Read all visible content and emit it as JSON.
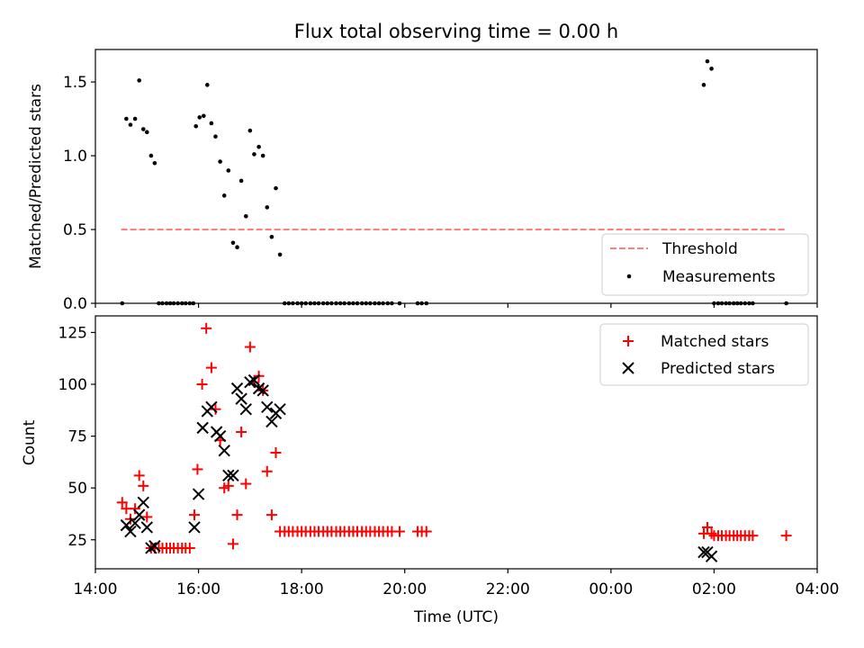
{
  "title": "Flux total observing time = 0.00 h",
  "colors": {
    "threshold": "#ff7f7f",
    "measurement": "#000000",
    "matched": "#ff0000",
    "predicted": "#000000",
    "axes": "#000000"
  },
  "chart_data": [
    {
      "type": "scatter",
      "ylabel": "Matched/Predicted stars",
      "xlim_hours": [
        14.0,
        28.0
      ],
      "ylim": [
        0,
        1.72
      ],
      "yticks": [
        0.0,
        0.5,
        1.0,
        1.5
      ],
      "ytick_labels": [
        "0.0",
        "0.5",
        "1.0",
        "1.5"
      ],
      "legend": {
        "location": "lower-right",
        "entries": [
          "Threshold",
          "Measurements"
        ]
      },
      "threshold": {
        "name": "Threshold",
        "y": 0.5,
        "x_range": [
          14.5,
          27.4
        ]
      },
      "series": [
        {
          "name": "Measurements",
          "marker": "dot",
          "points": [
            [
              14.52,
              0
            ],
            [
              14.6,
              1.25
            ],
            [
              14.68,
              1.21
            ],
            [
              14.77,
              1.25
            ],
            [
              14.85,
              1.51
            ],
            [
              14.93,
              1.18
            ],
            [
              15.0,
              1.16
            ],
            [
              15.08,
              1.0
            ],
            [
              15.15,
              0.95
            ],
            [
              15.23,
              0
            ],
            [
              15.3,
              0
            ],
            [
              15.38,
              0
            ],
            [
              15.45,
              0
            ],
            [
              15.52,
              0
            ],
            [
              15.6,
              0
            ],
            [
              15.68,
              0
            ],
            [
              15.75,
              0
            ],
            [
              15.83,
              0
            ],
            [
              15.9,
              0
            ],
            [
              15.95,
              1.2
            ],
            [
              16.02,
              1.26
            ],
            [
              16.1,
              1.27
            ],
            [
              16.17,
              1.48
            ],
            [
              16.25,
              1.22
            ],
            [
              16.33,
              1.13
            ],
            [
              16.42,
              0.96
            ],
            [
              16.5,
              0.73
            ],
            [
              16.58,
              0.9
            ],
            [
              16.67,
              0.41
            ],
            [
              16.75,
              0.38
            ],
            [
              16.83,
              0.83
            ],
            [
              16.92,
              0.59
            ],
            [
              17.0,
              1.17
            ],
            [
              17.08,
              1.01
            ],
            [
              17.17,
              1.06
            ],
            [
              17.25,
              1.0
            ],
            [
              17.33,
              0.65
            ],
            [
              17.42,
              0.45
            ],
            [
              17.5,
              0.78
            ],
            [
              17.58,
              0.33
            ],
            [
              17.67,
              0
            ],
            [
              17.75,
              0
            ],
            [
              17.83,
              0
            ],
            [
              17.92,
              0
            ],
            [
              18.0,
              0
            ],
            [
              18.08,
              0
            ],
            [
              18.17,
              0
            ],
            [
              18.25,
              0
            ],
            [
              18.33,
              0
            ],
            [
              18.42,
              0
            ],
            [
              18.5,
              0
            ],
            [
              18.58,
              0
            ],
            [
              18.67,
              0
            ],
            [
              18.75,
              0
            ],
            [
              18.83,
              0
            ],
            [
              18.92,
              0
            ],
            [
              19.0,
              0
            ],
            [
              19.08,
              0
            ],
            [
              19.17,
              0
            ],
            [
              19.25,
              0
            ],
            [
              19.33,
              0
            ],
            [
              19.42,
              0
            ],
            [
              19.5,
              0
            ],
            [
              19.58,
              0
            ],
            [
              19.67,
              0
            ],
            [
              19.75,
              0
            ],
            [
              19.9,
              0
            ],
            [
              20.25,
              0
            ],
            [
              20.33,
              0
            ],
            [
              20.42,
              0
            ],
            [
              25.8,
              1.48
            ],
            [
              25.87,
              1.64
            ],
            [
              25.95,
              1.59
            ],
            [
              26.0,
              0
            ],
            [
              26.08,
              0
            ],
            [
              26.15,
              0
            ],
            [
              26.23,
              0
            ],
            [
              26.3,
              0
            ],
            [
              26.38,
              0
            ],
            [
              26.45,
              0
            ],
            [
              26.52,
              0
            ],
            [
              26.6,
              0
            ],
            [
              26.68,
              0
            ],
            [
              26.75,
              0
            ],
            [
              27.4,
              0
            ]
          ]
        }
      ]
    },
    {
      "type": "scatter",
      "xlabel": "Time (UTC)",
      "ylabel": "Count",
      "xlim_hours": [
        14.0,
        28.0
      ],
      "ylim": [
        11,
        133
      ],
      "xticks_hours": [
        14,
        16,
        18,
        20,
        22,
        24,
        26,
        28
      ],
      "xtick_labels": [
        "14:00",
        "16:00",
        "18:00",
        "20:00",
        "22:00",
        "00:00",
        "02:00",
        "04:00"
      ],
      "yticks": [
        25,
        50,
        75,
        100,
        125
      ],
      "ytick_labels": [
        "25",
        "50",
        "75",
        "100",
        "125"
      ],
      "legend": {
        "location": "top-right",
        "entries": [
          "Matched stars",
          "Predicted stars"
        ]
      },
      "series": [
        {
          "name": "Matched stars",
          "marker": "plus",
          "points": [
            [
              14.52,
              43
            ],
            [
              14.6,
              40
            ],
            [
              14.68,
              35
            ],
            [
              14.77,
              40
            ],
            [
              14.85,
              56
            ],
            [
              14.93,
              51
            ],
            [
              15.0,
              36
            ],
            [
              15.08,
              21
            ],
            [
              15.15,
              21
            ],
            [
              15.23,
              21
            ],
            [
              15.3,
              21
            ],
            [
              15.38,
              21
            ],
            [
              15.45,
              21
            ],
            [
              15.52,
              21
            ],
            [
              15.6,
              21
            ],
            [
              15.68,
              21
            ],
            [
              15.75,
              21
            ],
            [
              15.83,
              21
            ],
            [
              15.92,
              37
            ],
            [
              15.98,
              59
            ],
            [
              16.07,
              100
            ],
            [
              16.15,
              127
            ],
            [
              16.25,
              108
            ],
            [
              16.33,
              88
            ],
            [
              16.42,
              73
            ],
            [
              16.5,
              50
            ],
            [
              16.58,
              51
            ],
            [
              16.67,
              23
            ],
            [
              16.75,
              37
            ],
            [
              16.83,
              77
            ],
            [
              16.92,
              52
            ],
            [
              17.0,
              118
            ],
            [
              17.08,
              101
            ],
            [
              17.17,
              104
            ],
            [
              17.25,
              97
            ],
            [
              17.33,
              58
            ],
            [
              17.42,
              37
            ],
            [
              17.5,
              67
            ],
            [
              17.58,
              29
            ],
            [
              17.67,
              29
            ],
            [
              17.75,
              29
            ],
            [
              17.83,
              29
            ],
            [
              17.92,
              29
            ],
            [
              18.0,
              29
            ],
            [
              18.08,
              29
            ],
            [
              18.17,
              29
            ],
            [
              18.25,
              29
            ],
            [
              18.33,
              29
            ],
            [
              18.42,
              29
            ],
            [
              18.5,
              29
            ],
            [
              18.58,
              29
            ],
            [
              18.67,
              29
            ],
            [
              18.75,
              29
            ],
            [
              18.83,
              29
            ],
            [
              18.92,
              29
            ],
            [
              19.0,
              29
            ],
            [
              19.08,
              29
            ],
            [
              19.17,
              29
            ],
            [
              19.25,
              29
            ],
            [
              19.33,
              29
            ],
            [
              19.42,
              29
            ],
            [
              19.5,
              29
            ],
            [
              19.58,
              29
            ],
            [
              19.67,
              29
            ],
            [
              19.75,
              29
            ],
            [
              19.9,
              29
            ],
            [
              20.25,
              29
            ],
            [
              20.33,
              29
            ],
            [
              20.42,
              29
            ],
            [
              25.8,
              28
            ],
            [
              25.87,
              31
            ],
            [
              25.95,
              28
            ],
            [
              26.0,
              27
            ],
            [
              26.08,
              27
            ],
            [
              26.15,
              27
            ],
            [
              26.23,
              27
            ],
            [
              26.3,
              27
            ],
            [
              26.38,
              27
            ],
            [
              26.45,
              27
            ],
            [
              26.52,
              27
            ],
            [
              26.6,
              27
            ],
            [
              26.68,
              27
            ],
            [
              26.75,
              27
            ],
            [
              27.4,
              27
            ]
          ]
        },
        {
          "name": "Predicted stars",
          "marker": "x",
          "points": [
            [
              14.6,
              32
            ],
            [
              14.68,
              29
            ],
            [
              14.77,
              33
            ],
            [
              14.85,
              37
            ],
            [
              14.93,
              43
            ],
            [
              15.0,
              31
            ],
            [
              15.08,
              21
            ],
            [
              15.15,
              22
            ],
            [
              15.92,
              31
            ],
            [
              16.0,
              47
            ],
            [
              16.08,
              79
            ],
            [
              16.17,
              87
            ],
            [
              16.25,
              89
            ],
            [
              16.35,
              77
            ],
            [
              16.42,
              75
            ],
            [
              16.5,
              68
            ],
            [
              16.58,
              56
            ],
            [
              16.67,
              56
            ],
            [
              16.75,
              98
            ],
            [
              16.83,
              93
            ],
            [
              16.92,
              88
            ],
            [
              17.0,
              101
            ],
            [
              17.08,
              102
            ],
            [
              17.17,
              98
            ],
            [
              17.25,
              97
            ],
            [
              17.33,
              89
            ],
            [
              17.42,
              82
            ],
            [
              17.5,
              86
            ],
            [
              17.58,
              88
            ],
            [
              25.8,
              19
            ],
            [
              25.87,
              19
            ],
            [
              25.95,
              17
            ]
          ]
        }
      ]
    }
  ]
}
